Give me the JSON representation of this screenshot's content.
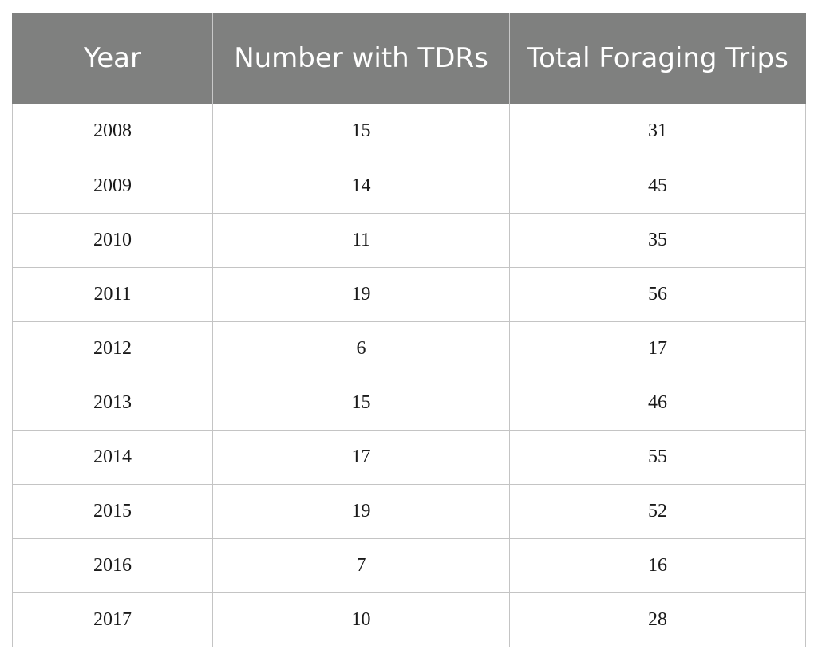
{
  "table": {
    "headers": [
      "Year",
      "Number with TDRs",
      "Total Foraging Trips"
    ],
    "rows": [
      [
        "2008",
        "15",
        "31"
      ],
      [
        "2009",
        "14",
        "45"
      ],
      [
        "2010",
        "11",
        "35"
      ],
      [
        "2011",
        "19",
        "56"
      ],
      [
        "2012",
        "6",
        "17"
      ],
      [
        "2013",
        "15",
        "46"
      ],
      [
        "2014",
        "17",
        "55"
      ],
      [
        "2015",
        "19",
        "52"
      ],
      [
        "2016",
        "7",
        "16"
      ],
      [
        "2017",
        "10",
        "28"
      ]
    ]
  }
}
